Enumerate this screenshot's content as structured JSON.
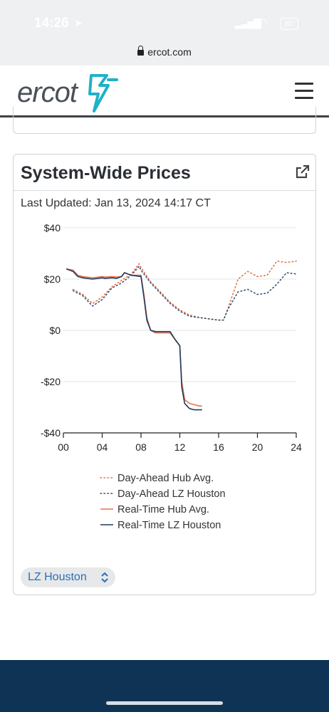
{
  "status_bar": {
    "time": "14:26",
    "battery": "81"
  },
  "browser": {
    "url": "ercot.com"
  },
  "site": {
    "logo_text": "ercot"
  },
  "card": {
    "title": "System-Wide Prices",
    "last_updated": "Last Updated: Jan 13, 2024 14:17 CT",
    "selector_value": "LZ Houston"
  },
  "chart_data": {
    "type": "line",
    "xlim": [
      0,
      24
    ],
    "ylim": [
      -40,
      40
    ],
    "x_ticks": [
      "00",
      "04",
      "08",
      "12",
      "16",
      "20",
      "24"
    ],
    "y_ticks": [
      "$40",
      "$20",
      "$0",
      "-$20",
      "-$40"
    ],
    "grid": true,
    "legend_position": "bottom",
    "series": [
      {
        "name": "Day-Ahead Hub Avg.",
        "color": "#e8744a",
        "style": "dotted",
        "x": [
          1,
          2,
          3,
          4,
          5,
          6,
          7,
          7.8,
          8,
          9,
          10,
          11,
          12,
          13,
          14,
          15,
          16,
          16.5,
          17,
          18,
          19,
          20,
          21,
          22,
          23,
          24
        ],
        "y": [
          16,
          14,
          10.5,
          13,
          17,
          19.5,
          22,
          26,
          24.5,
          19,
          15,
          11,
          8,
          6,
          5,
          4.5,
          4,
          4,
          9,
          20,
          23,
          21,
          21.5,
          27,
          26.5,
          27
        ]
      },
      {
        "name": "Day-Ahead LZ Houston",
        "color": "#34557a",
        "style": "dotted",
        "x": [
          1,
          2,
          3,
          4,
          5,
          6,
          7,
          7.8,
          8,
          9,
          10,
          11,
          12,
          13,
          14,
          15,
          16,
          16.5,
          17,
          18,
          19,
          20,
          21,
          22,
          23,
          24
        ],
        "y": [
          15.5,
          13.5,
          9.5,
          12,
          16.5,
          18.5,
          21.5,
          25,
          23.5,
          18.5,
          14.5,
          10.5,
          7.5,
          5.5,
          5,
          4.5,
          4,
          4,
          8.5,
          15,
          16,
          14,
          14.5,
          18,
          22.5,
          22
        ]
      },
      {
        "name": "Real-Time Hub Avg.",
        "color": "#e8744a",
        "style": "solid",
        "x": [
          0.3,
          1,
          1.5,
          2,
          3,
          4,
          4.3,
          5,
          5.5,
          6,
          6.3,
          7,
          8,
          8.3,
          8.6,
          9,
          9.5,
          10,
          11,
          11.5,
          12,
          12.2,
          12.5,
          13,
          13.5,
          14,
          14.3
        ],
        "y": [
          24,
          23.5,
          21.5,
          21,
          20.5,
          21,
          20.8,
          21,
          20.8,
          21,
          22.5,
          21.5,
          21.5,
          14,
          5,
          0,
          -1,
          -1,
          -1,
          -3.5,
          -6,
          -20,
          -27,
          -28.5,
          -29,
          -29.5,
          -29.5
        ]
      },
      {
        "name": "Real-Time LZ Houston",
        "color": "#1f3a5f",
        "style": "solid",
        "x": [
          0.3,
          1,
          1.5,
          2,
          3,
          4,
          4.3,
          5,
          5.5,
          6,
          6.3,
          7,
          8,
          8.3,
          8.6,
          9,
          9.5,
          10,
          11,
          11.5,
          12,
          12.2,
          12.5,
          13,
          13.5,
          14,
          14.3
        ],
        "y": [
          24,
          23,
          21,
          20.5,
          20,
          20.5,
          20.3,
          20.5,
          20.3,
          21,
          22.5,
          21.5,
          21,
          13,
          4,
          0,
          -0.5,
          -0.5,
          -0.5,
          -3.5,
          -6,
          -22,
          -28.5,
          -30.5,
          -31,
          -31,
          -31
        ]
      }
    ]
  }
}
